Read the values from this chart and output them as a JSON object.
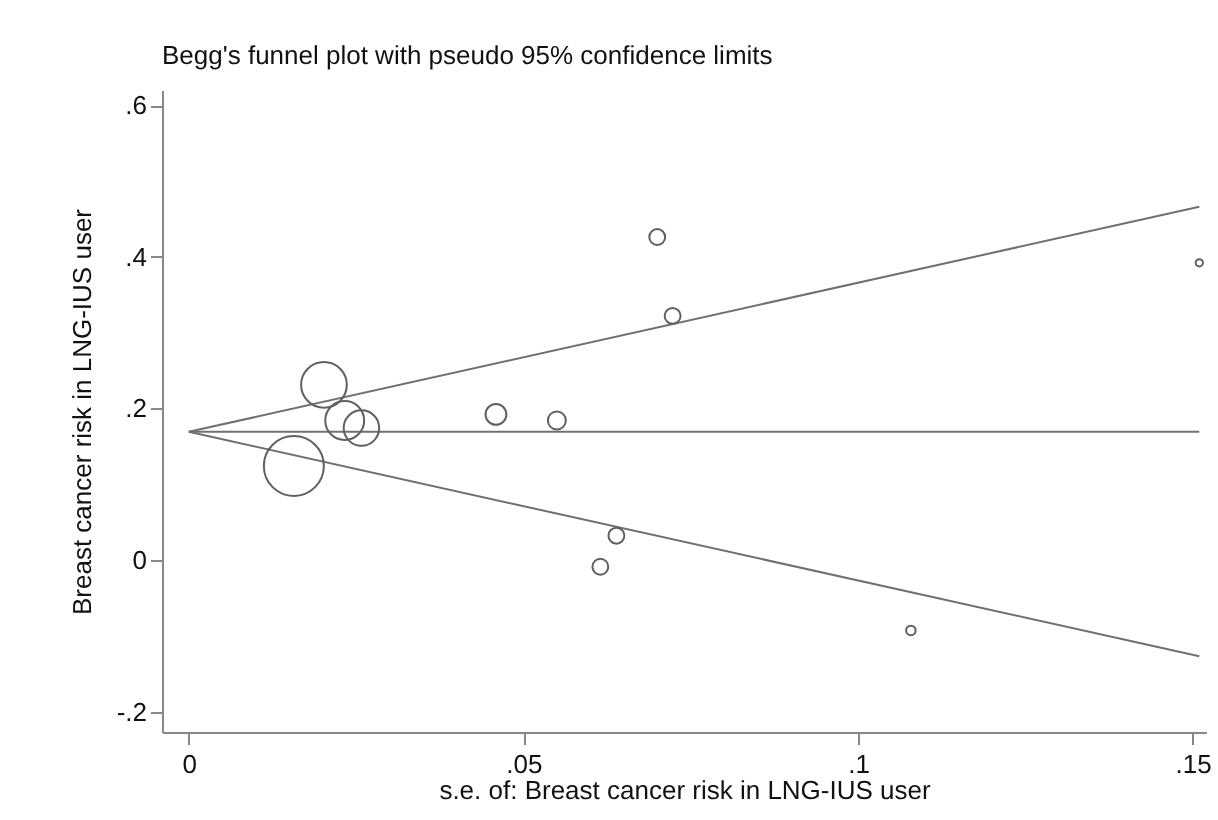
{
  "chart_data": {
    "type": "scatter",
    "title": "Begg's funnel plot with pseudo 95% confidence limits",
    "xlabel": "s.e. of: Breast cancer risk in LNG-IUS user",
    "ylabel": "Breast cancer risk in LNG-IUS user",
    "xlim": [
      -0.004,
      0.152
    ],
    "ylim": [
      -0.227,
      0.62
    ],
    "xticks": [
      {
        "value": 0,
        "label": "0"
      },
      {
        "value": 0.05,
        "label": ".05"
      },
      {
        "value": 0.1,
        "label": ".1"
      },
      {
        "value": 0.15,
        "label": ".15"
      }
    ],
    "yticks": [
      {
        "value": -0.2,
        "label": "-.2"
      },
      {
        "value": 0,
        "label": "0"
      },
      {
        "value": 0.2,
        "label": ".2"
      },
      {
        "value": 0.4,
        "label": ".4"
      },
      {
        "value": 0.6,
        "label": ".6"
      }
    ],
    "grid": false,
    "series": [
      {
        "type": "line",
        "color": "#707070",
        "x": [
          0,
          0.151
        ],
        "values": [
          0.169,
          0.169
        ]
      },
      {
        "type": "line",
        "color": "#707070",
        "x": [
          0,
          0.151
        ],
        "values": [
          0.169,
          0.466
        ]
      },
      {
        "type": "line",
        "color": "#707070",
        "x": [
          0,
          0.151
        ],
        "values": [
          0.169,
          -0.127
        ]
      },
      {
        "marker": "circle",
        "color": "#606060",
        "x": [
          0.0202,
          0.0233,
          0.0258,
          0.0157,
          0.0459,
          0.055,
          0.07,
          0.0723,
          0.0615,
          0.0639,
          0.1079,
          0.151
        ],
        "values": [
          0.231,
          0.184,
          0.174,
          0.124,
          0.192,
          0.184,
          0.426,
          0.322,
          -0.009,
          0.032,
          -0.093,
          0.392
        ],
        "sizes": [
          0.58,
          0.42,
          0.35,
          1,
          0.12,
          0.09,
          0.07,
          0.07,
          0.07,
          0.07,
          0.025,
          0.015
        ]
      }
    ]
  }
}
